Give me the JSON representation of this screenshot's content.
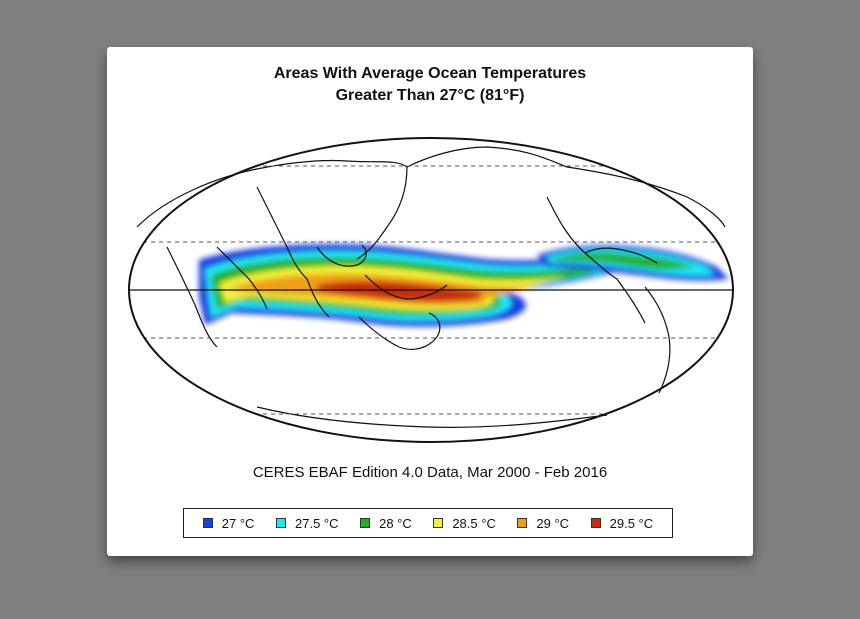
{
  "title_line1": "Areas With Average Ocean Temperatures",
  "title_line2": "Greater Than 27°C (81°F)",
  "subtitle": "CERES EBAF Edition 4.0 Data, Mar 2000 - Feb 2016",
  "legend": [
    {
      "label": "27 °C",
      "color": "#1a3fe0"
    },
    {
      "label": "27.5 °C",
      "color": "#22e8f0"
    },
    {
      "label": "28 °C",
      "color": "#22b022"
    },
    {
      "label": "28.5 °C",
      "color": "#f2f23a"
    },
    {
      "label": "29 °C",
      "color": "#f0a018"
    },
    {
      "label": "29.5 °C",
      "color": "#c82a10"
    }
  ],
  "map": {
    "projection": "mollweide",
    "center_longitude": 150,
    "reference_lines": [
      "equator",
      "tropics",
      "polar circles"
    ]
  }
}
